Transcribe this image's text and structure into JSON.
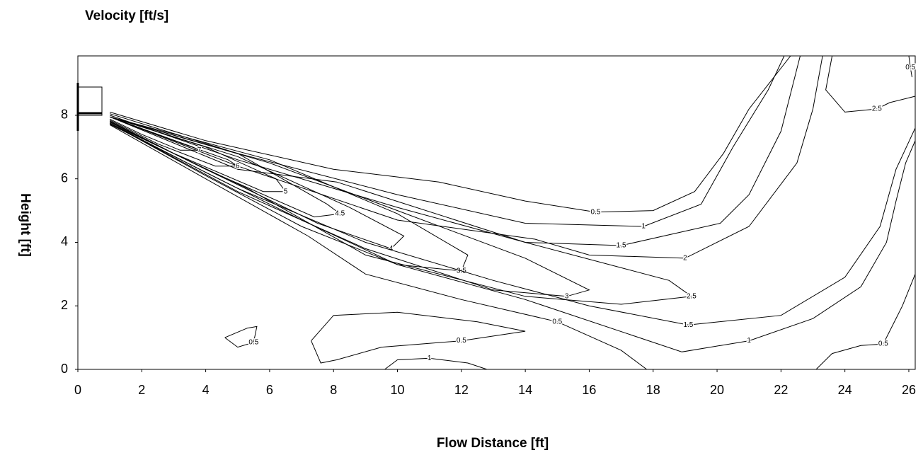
{
  "chart_data": {
    "type": "contour",
    "title": "Velocity [ft/s]",
    "xlabel": "Flow Distance [ft]",
    "ylabel": "Height [ft]",
    "xlim": [
      0,
      26.2
    ],
    "ylim": [
      0,
      9.87
    ],
    "xticks": [
      0,
      2,
      4,
      6,
      8,
      10,
      12,
      14,
      16,
      18,
      20,
      22,
      24,
      26
    ],
    "yticks": [
      0,
      2,
      4,
      6,
      8
    ],
    "color": "#000000",
    "contours": [
      {
        "level": 0.5,
        "x": [
          1,
          4,
          8,
          11.3,
          14,
          16.2,
          18,
          19.3,
          20.2,
          21,
          22.3
        ],
        "y": [
          8.1,
          7.2,
          6.3,
          5.9,
          5.3,
          4.95,
          5.0,
          5.6,
          6.8,
          8.2,
          9.87
        ]
      },
      {
        "level": 1,
        "x": [
          1,
          5,
          10,
          14,
          17.7,
          19.5,
          20.5,
          21.6,
          22.1
        ],
        "y": [
          8.05,
          6.8,
          5.5,
          4.6,
          4.5,
          5.2,
          7.0,
          8.8,
          9.87
        ]
      },
      {
        "level": 1.5,
        "x": [
          1,
          5,
          10,
          14,
          17,
          20.1,
          21,
          22,
          22.6
        ],
        "y": [
          8.0,
          6.6,
          5.1,
          4.0,
          3.9,
          4.6,
          5.5,
          7.5,
          9.87
        ]
      },
      {
        "level": 2,
        "x": [
          1,
          5,
          10,
          14.3,
          16,
          19,
          21,
          22.5,
          23,
          23.3
        ],
        "y": [
          7.95,
          6.4,
          4.7,
          4.1,
          3.6,
          3.5,
          4.5,
          6.5,
          8.2,
          9.87
        ]
      },
      {
        "level": 2.5,
        "x": [
          1,
          5,
          8.1,
          14,
          18.5,
          19.2,
          17,
          14,
          9,
          5.3,
          1
        ],
        "y": [
          7.95,
          6.3,
          5.9,
          4.0,
          2.8,
          2.3,
          2.05,
          2.3,
          3.6,
          5.7,
          7.75
        ]
      },
      {
        "level": 3,
        "x": [
          1,
          6,
          10,
          14,
          16,
          15.3,
          13,
          9,
          5,
          1
        ],
        "y": [
          7.95,
          6.5,
          5.0,
          3.5,
          2.5,
          2.3,
          2.5,
          3.8,
          5.6,
          7.75
        ]
      },
      {
        "level": 3.5,
        "x": [
          1,
          6,
          10,
          12.2,
          12,
          10,
          7,
          4,
          1
        ],
        "y": [
          7.95,
          6.6,
          4.9,
          3.6,
          3.1,
          3.3,
          4.7,
          6.2,
          7.75
        ]
      },
      {
        "level": 4,
        "x": [
          1,
          5,
          8.5,
          10.2,
          9.8,
          7.5,
          4,
          1
        ],
        "y": [
          7.95,
          6.7,
          5.1,
          4.2,
          3.8,
          4.6,
          6.3,
          7.78
        ]
      },
      {
        "level": 4.5,
        "x": [
          1,
          5,
          7.8,
          8.2,
          7.4,
          4,
          1
        ],
        "y": [
          7.95,
          6.8,
          5.2,
          4.9,
          4.8,
          6.3,
          7.8
        ]
      },
      {
        "level": 5,
        "x": [
          1,
          4,
          6.2,
          6.5,
          5.8,
          3,
          1
        ],
        "y": [
          7.95,
          7.0,
          6.0,
          5.6,
          5.6,
          6.8,
          7.82
        ]
      },
      {
        "level": 6,
        "x": [
          1,
          3,
          4.7,
          5,
          4.3,
          2.5,
          1
        ],
        "y": [
          7.95,
          7.2,
          6.6,
          6.4,
          6.4,
          7.1,
          7.85
        ]
      },
      {
        "level": 7,
        "x": [
          1,
          2.5,
          3.6,
          3.8,
          3.2,
          2,
          1
        ],
        "y": [
          7.95,
          7.4,
          7.0,
          6.9,
          6.9,
          7.4,
          7.88
        ]
      },
      {
        "level": 0.5,
        "x": [
          1,
          4,
          7.2,
          9,
          12,
          15,
          17,
          17.8,
          19,
          20,
          21
        ],
        "y": [
          7.7,
          6.0,
          4.2,
          3.0,
          2.2,
          1.5,
          0.6,
          0,
          0,
          0,
          0
        ]
      },
      {
        "level": 1,
        "x": [
          1,
          4,
          7,
          10,
          14,
          18.9,
          21,
          23,
          24.5,
          25.3,
          25.6,
          25.9,
          26.2
        ],
        "y": [
          7.75,
          6.1,
          4.5,
          3.3,
          2.2,
          0.55,
          0.9,
          1.6,
          2.6,
          4.0,
          5.3,
          6.5,
          7.2
        ]
      },
      {
        "level": 1.5,
        "x": [
          1,
          5,
          9,
          13,
          16,
          19.1,
          22,
          24,
          25.1,
          25.6,
          26.2
        ],
        "y": [
          7.72,
          5.7,
          4.0,
          2.8,
          2.0,
          1.4,
          1.7,
          2.9,
          4.5,
          6.3,
          7.6
        ]
      },
      {
        "level": 0.5,
        "x": [
          4.6,
          5.3,
          5.6,
          5.5,
          5.0,
          4.6
        ],
        "y": [
          1.0,
          1.3,
          1.35,
          0.85,
          0.7,
          1.0
        ]
      },
      {
        "level": 0.5,
        "x": [
          7.3,
          8.0,
          10,
          12.5,
          14,
          12,
          9.5,
          8.1,
          7.6,
          7.3
        ],
        "y": [
          0.9,
          1.7,
          1.8,
          1.5,
          1.2,
          0.9,
          0.7,
          0.3,
          0.2,
          0.9
        ]
      },
      {
        "level": 1,
        "x": [
          9.6,
          10,
          11,
          12.2,
          12.8
        ],
        "y": [
          0,
          0.3,
          0.35,
          0.2,
          0
        ]
      },
      {
        "level": 0.5,
        "x": [
          23.1,
          23.6,
          24.5,
          25.2,
          25.8,
          26.2
        ],
        "y": [
          0,
          0.5,
          0.75,
          0.8,
          2.0,
          3.0
        ]
      },
      {
        "level": 2.5,
        "x": [
          23.6,
          23.4,
          24,
          25,
          25.4,
          26.2
        ],
        "y": [
          9.87,
          8.8,
          8.1,
          8.2,
          8.4,
          8.6
        ]
      },
      {
        "level": 0.5,
        "x": [
          26.0,
          26.05,
          26.1
        ],
        "y": [
          9.87,
          9.5,
          9.2
        ]
      }
    ]
  }
}
